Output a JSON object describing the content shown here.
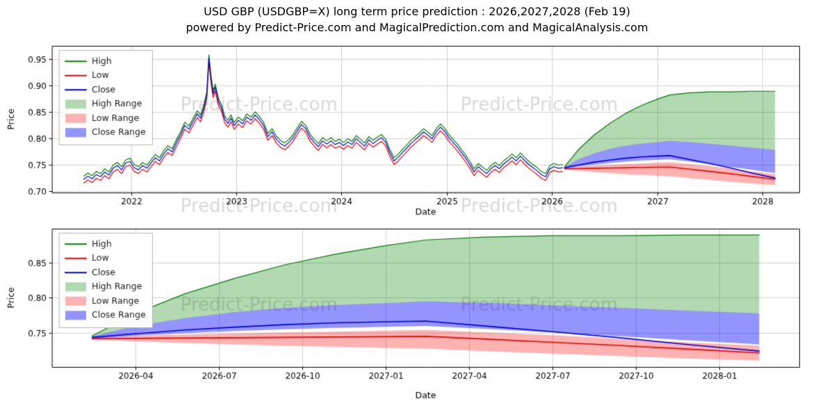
{
  "header": {
    "title": "USD GBP (USDGBP=X) long term price prediction : 2026,2027,2028 (Feb 19)",
    "subtitle": "powered by Predict-Price.com and MagicalPrediction.com and MagicalAnalysis.com"
  },
  "watermark": "Predict-Price.com",
  "colors": {
    "high": "#007d00",
    "low": "#e60000",
    "close": "#0000cc",
    "high_range": "rgba(0,128,0,0.30)",
    "low_range": "rgba(255,0,0,0.30)",
    "close_range": "rgba(0,0,255,0.42)",
    "watermark": "#d9d9d9",
    "grid": "#d2d2d2",
    "spine": "#000000",
    "text": "#000000"
  },
  "legend": {
    "items": [
      {
        "label": "High",
        "kind": "line",
        "color_key": "high"
      },
      {
        "label": "Low",
        "kind": "line",
        "color_key": "low"
      },
      {
        "label": "Close",
        "kind": "line",
        "color_key": "close"
      },
      {
        "label": "High Range",
        "kind": "patch",
        "color_key": "high_range"
      },
      {
        "label": "Low Range",
        "kind": "patch",
        "color_key": "low_range"
      },
      {
        "label": "Close Range",
        "kind": "patch",
        "color_key": "close_range"
      }
    ]
  },
  "chart_data": {
    "type": "line",
    "title": "USD GBP (USDGBP=X) long term price prediction : 2026,2027,2028 (Feb 19)",
    "history": {
      "high_offset": 0.006,
      "low_offset": 0.007,
      "x": [
        2021.55,
        2021.59,
        2021.63,
        2021.67,
        2021.71,
        2021.75,
        2021.79,
        2021.83,
        2021.87,
        2021.91,
        2021.95,
        2021.99,
        2022.03,
        2022.07,
        2022.11,
        2022.15,
        2022.19,
        2022.23,
        2022.27,
        2022.31,
        2022.35,
        2022.39,
        2022.43,
        2022.47,
        2022.51,
        2022.55,
        2022.59,
        2022.63,
        2022.66,
        2022.69,
        2022.72,
        2022.74,
        2022.76,
        2022.78,
        2022.8,
        2022.83,
        2022.86,
        2022.89,
        2022.92,
        2022.95,
        2022.98,
        2023.02,
        2023.06,
        2023.1,
        2023.14,
        2023.18,
        2023.22,
        2023.26,
        2023.3,
        2023.34,
        2023.38,
        2023.42,
        2023.46,
        2023.5,
        2023.54,
        2023.58,
        2023.62,
        2023.66,
        2023.7,
        2023.74,
        2023.78,
        2023.82,
        2023.86,
        2023.9,
        2023.94,
        2023.98,
        2024.02,
        2024.06,
        2024.1,
        2024.14,
        2024.18,
        2024.22,
        2024.26,
        2024.3,
        2024.34,
        2024.38,
        2024.42,
        2024.46,
        2024.5,
        2024.54,
        2024.58,
        2024.62,
        2024.66,
        2024.7,
        2024.74,
        2024.78,
        2024.82,
        2024.86,
        2024.9,
        2024.94,
        2024.98,
        2025.02,
        2025.06,
        2025.1,
        2025.14,
        2025.18,
        2025.22,
        2025.26,
        2025.3,
        2025.34,
        2025.38,
        2025.42,
        2025.46,
        2025.5,
        2025.54,
        2025.58,
        2025.62,
        2025.66,
        2025.7,
        2025.74,
        2025.78,
        2025.82,
        2025.86,
        2025.9,
        2025.94,
        2025.98,
        2026.02,
        2026.06,
        2026.1
      ],
      "close": [
        0.722,
        0.728,
        0.723,
        0.731,
        0.727,
        0.736,
        0.73,
        0.743,
        0.748,
        0.74,
        0.753,
        0.756,
        0.744,
        0.74,
        0.748,
        0.743,
        0.753,
        0.763,
        0.757,
        0.77,
        0.78,
        0.774,
        0.791,
        0.806,
        0.824,
        0.817,
        0.832,
        0.846,
        0.838,
        0.856,
        0.882,
        0.952,
        0.912,
        0.884,
        0.897,
        0.87,
        0.857,
        0.836,
        0.828,
        0.838,
        0.824,
        0.834,
        0.827,
        0.84,
        0.834,
        0.844,
        0.835,
        0.824,
        0.803,
        0.812,
        0.798,
        0.79,
        0.785,
        0.792,
        0.801,
        0.814,
        0.826,
        0.818,
        0.802,
        0.792,
        0.784,
        0.795,
        0.789,
        0.795,
        0.788,
        0.792,
        0.786,
        0.793,
        0.788,
        0.799,
        0.792,
        0.785,
        0.797,
        0.79,
        0.796,
        0.801,
        0.792,
        0.772,
        0.757,
        0.764,
        0.773,
        0.781,
        0.79,
        0.797,
        0.804,
        0.812,
        0.806,
        0.799,
        0.812,
        0.821,
        0.813,
        0.801,
        0.792,
        0.783,
        0.773,
        0.762,
        0.75,
        0.736,
        0.746,
        0.739,
        0.733,
        0.742,
        0.748,
        0.742,
        0.751,
        0.757,
        0.764,
        0.757,
        0.766,
        0.758,
        0.75,
        0.744,
        0.738,
        0.731,
        0.727,
        0.742,
        0.746,
        0.743,
        0.744
      ]
    },
    "prediction": {
      "x": [
        2026.12,
        2026.25,
        2026.4,
        2026.55,
        2026.7,
        2026.85,
        2027.0,
        2027.12,
        2027.3,
        2027.5,
        2027.7,
        2027.9,
        2028.12
      ],
      "close": [
        0.744,
        0.749,
        0.7545,
        0.7585,
        0.762,
        0.7645,
        0.766,
        0.767,
        0.76,
        0.752,
        0.7435,
        0.734,
        0.7245
      ],
      "low": [
        0.742,
        0.7425,
        0.743,
        0.7435,
        0.744,
        0.7445,
        0.745,
        0.7455,
        0.7415,
        0.737,
        0.7325,
        0.7275,
        0.722
      ],
      "high_top": [
        0.746,
        0.778,
        0.806,
        0.828,
        0.847,
        0.862,
        0.874,
        0.882,
        0.886,
        0.888,
        0.888,
        0.889,
        0.889
      ],
      "close_band_top": [
        0.7455,
        0.76,
        0.7715,
        0.78,
        0.786,
        0.79,
        0.7925,
        0.795,
        0.793,
        0.7895,
        0.786,
        0.782,
        0.778
      ],
      "close_band_bot": [
        0.7425,
        0.7465,
        0.75,
        0.753,
        0.7555,
        0.7575,
        0.759,
        0.76,
        0.756,
        0.751,
        0.7455,
        0.74,
        0.734
      ],
      "low_band_top": [
        0.744,
        0.7465,
        0.748,
        0.7495,
        0.751,
        0.752,
        0.7535,
        0.7545,
        0.751,
        0.747,
        0.742,
        0.737,
        0.732
      ],
      "low_band_bot": [
        0.741,
        0.7385,
        0.736,
        0.734,
        0.732,
        0.7305,
        0.729,
        0.728,
        0.7245,
        0.721,
        0.7175,
        0.714,
        0.711
      ]
    },
    "charts": [
      {
        "name": "overview",
        "xlabel": "Date",
        "ylabel": "Price",
        "xlim": [
          2021.25,
          2028.35
        ],
        "ylim": [
          0.697,
          0.975
        ],
        "yticks": [
          0.7,
          0.75,
          0.8,
          0.85,
          0.9,
          0.95
        ],
        "xticks": [
          {
            "v": 2022,
            "label": "2022"
          },
          {
            "v": 2023,
            "label": "2023"
          },
          {
            "v": 2024,
            "label": "2024"
          },
          {
            "v": 2025,
            "label": "2025"
          },
          {
            "v": 2026,
            "label": "2026"
          },
          {
            "v": 2027,
            "label": "2027"
          },
          {
            "v": 2028,
            "label": "2028"
          }
        ],
        "show_history": true
      },
      {
        "name": "prediction-zoom",
        "xlabel": "Date",
        "ylabel": "Price",
        "xlim": [
          2026.0,
          2028.24
        ],
        "ylim": [
          0.702,
          0.898
        ],
        "yticks": [
          0.75,
          0.8,
          0.85
        ],
        "xticks": [
          {
            "v": 2026.25,
            "label": "2026-04"
          },
          {
            "v": 2026.5,
            "label": "2026-07"
          },
          {
            "v": 2026.75,
            "label": "2026-10"
          },
          {
            "v": 2027.0,
            "label": "2027-01"
          },
          {
            "v": 2027.25,
            "label": "2027-04"
          },
          {
            "v": 2027.5,
            "label": "2027-07"
          },
          {
            "v": 2027.75,
            "label": "2027-10"
          },
          {
            "v": 2028.0,
            "label": "2028-01"
          }
        ],
        "show_history": false
      }
    ]
  }
}
